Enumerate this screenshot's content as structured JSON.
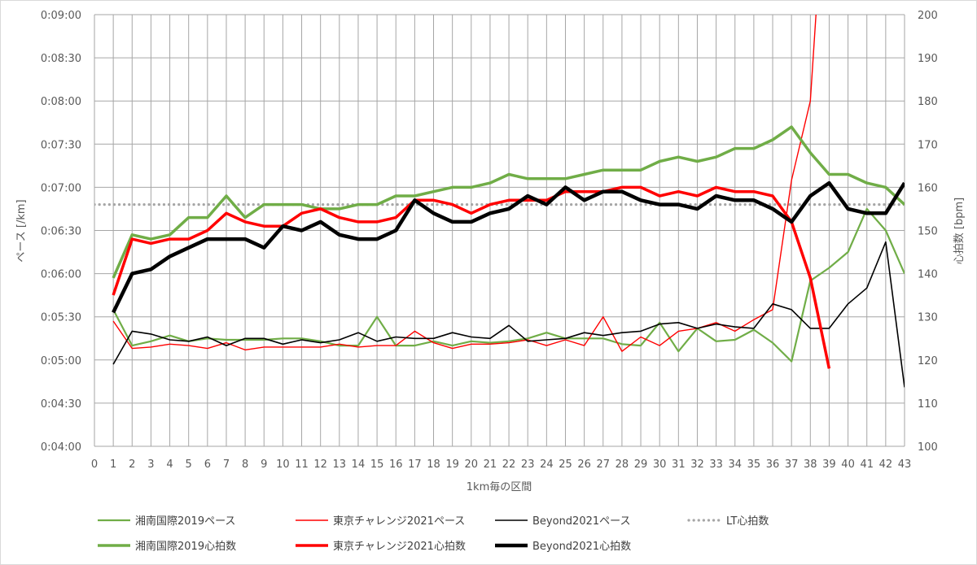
{
  "chart_data": {
    "type": "line",
    "title": "",
    "xlabel": "1km毎の区間",
    "ylabel_left": "ペース [/km]",
    "ylabel_right": "心拍数 [bpm]",
    "x": [
      0,
      1,
      2,
      3,
      4,
      5,
      6,
      7,
      8,
      9,
      10,
      11,
      12,
      13,
      14,
      15,
      16,
      17,
      18,
      19,
      20,
      21,
      22,
      23,
      24,
      25,
      26,
      27,
      28,
      29,
      30,
      31,
      32,
      33,
      34,
      35,
      36,
      37,
      38,
      39,
      40,
      41,
      42,
      43
    ],
    "xlim": [
      0,
      43
    ],
    "ylim_left": [
      240,
      540
    ],
    "yticks_left": [
      "0:04:00",
      "0:04:30",
      "0:05:00",
      "0:05:30",
      "0:06:00",
      "0:06:30",
      "0:07:00",
      "0:07:30",
      "0:08:00",
      "0:08:30",
      "0:09:00"
    ],
    "ylim_right": [
      100,
      200
    ],
    "yticks_right": [
      "100",
      "110",
      "120",
      "130",
      "140",
      "150",
      "160",
      "170",
      "180",
      "190",
      "200"
    ],
    "grid": true,
    "legend_position": "bottom",
    "series": [
      {
        "name": "湘南国際2019ペース",
        "axis": "left",
        "color": "#70ad47",
        "width": 2.2,
        "style": "solid",
        "x": [
          1,
          2,
          3,
          4,
          5,
          6,
          7,
          8,
          9,
          10,
          11,
          12,
          13,
          14,
          15,
          16,
          17,
          18,
          19,
          20,
          21,
          22,
          23,
          24,
          25,
          26,
          27,
          28,
          29,
          30,
          31,
          32,
          33,
          34,
          35,
          36,
          37,
          38,
          39,
          40,
          41,
          42,
          43
        ],
        "values": [
          335,
          310,
          313,
          317,
          313,
          315,
          314,
          314,
          314,
          315,
          315,
          313,
          310,
          310,
          330,
          310,
          310,
          313,
          310,
          313,
          312,
          313,
          315,
          319,
          315,
          315,
          315,
          311,
          310,
          326,
          306,
          322,
          313,
          314,
          321,
          312,
          299,
          355,
          364,
          375,
          405,
          390,
          360
        ]
      },
      {
        "name": "東京チャレンジ2021ペース",
        "axis": "left",
        "color": "#ff0000",
        "width": 1.4,
        "style": "solid",
        "x": [
          1,
          2,
          3,
          4,
          5,
          6,
          7,
          8,
          9,
          10,
          11,
          12,
          13,
          14,
          15,
          16,
          17,
          18,
          19,
          20,
          21,
          22,
          23,
          24,
          25,
          26,
          27,
          28,
          29,
          30,
          31,
          32,
          33,
          34,
          35,
          36,
          37,
          38,
          39
        ],
        "values": [
          327,
          308,
          309,
          311,
          310,
          308,
          312,
          307,
          309,
          309,
          309,
          309,
          311,
          309,
          310,
          310,
          320,
          312,
          308,
          311,
          311,
          312,
          314,
          310,
          314,
          310,
          330,
          306,
          316,
          310,
          320,
          322,
          326,
          320,
          328,
          335,
          425,
          480,
          680
        ]
      },
      {
        "name": "Beyond2021ペース",
        "axis": "left",
        "color": "#000000",
        "width": 1.6,
        "style": "solid",
        "x": [
          1,
          2,
          3,
          4,
          5,
          6,
          7,
          8,
          9,
          10,
          11,
          12,
          13,
          14,
          15,
          16,
          17,
          18,
          19,
          20,
          21,
          22,
          23,
          24,
          25,
          26,
          27,
          28,
          29,
          30,
          31,
          32,
          33,
          34,
          35,
          36,
          37,
          38,
          39,
          40,
          41,
          42,
          43
        ],
        "values": [
          297,
          320,
          318,
          314,
          313,
          316,
          310,
          315,
          315,
          311,
          314,
          312,
          314,
          319,
          313,
          316,
          315,
          315,
          319,
          316,
          315,
          324,
          313,
          314,
          315,
          319,
          317,
          319,
          320,
          325,
          326,
          322,
          325,
          323,
          322,
          339,
          335,
          322,
          322,
          339,
          350,
          382,
          281
        ]
      },
      {
        "name": "LT心拍数",
        "axis": "right",
        "color": "#a6a6a6",
        "width": 3.2,
        "style": "dotted",
        "x": [
          0,
          43
        ],
        "values": [
          156,
          156
        ]
      },
      {
        "name": "湘南国際2019心拍数",
        "axis": "right",
        "color": "#70ad47",
        "width": 3.5,
        "style": "solid",
        "x": [
          1,
          2,
          3,
          4,
          5,
          6,
          7,
          8,
          9,
          10,
          11,
          12,
          13,
          14,
          15,
          16,
          17,
          18,
          19,
          20,
          21,
          22,
          23,
          24,
          25,
          26,
          27,
          28,
          29,
          30,
          31,
          32,
          33,
          34,
          35,
          36,
          37,
          38,
          39,
          40,
          41,
          42,
          43
        ],
        "values": [
          139,
          149,
          148,
          149,
          153,
          153,
          158,
          153,
          156,
          156,
          156,
          155,
          155,
          156,
          156,
          158,
          158,
          159,
          160,
          160,
          161,
          163,
          162,
          162,
          162,
          163,
          164,
          164,
          164,
          166,
          167,
          166,
          167,
          169,
          169,
          171,
          174,
          168,
          163,
          163,
          161,
          160,
          156
        ]
      },
      {
        "name": "東京チャレンジ2021心拍数",
        "axis": "right",
        "color": "#ff0000",
        "width": 3.5,
        "style": "solid",
        "x": [
          1,
          2,
          3,
          4,
          5,
          6,
          7,
          8,
          9,
          10,
          11,
          12,
          13,
          14,
          15,
          16,
          17,
          18,
          19,
          20,
          21,
          22,
          23,
          24,
          25,
          26,
          27,
          28,
          29,
          30,
          31,
          32,
          33,
          34,
          35,
          36,
          37,
          38,
          39
        ],
        "values": [
          135,
          148,
          147,
          148,
          148,
          150,
          154,
          152,
          151,
          151,
          154,
          155,
          153,
          152,
          152,
          153,
          157,
          157,
          156,
          154,
          156,
          157,
          157,
          157,
          159,
          159,
          159,
          160,
          160,
          158,
          159,
          158,
          160,
          159,
          159,
          158,
          152,
          139,
          118
        ]
      },
      {
        "name": "Beyond2021心拍数",
        "axis": "right",
        "color": "#000000",
        "width": 4.5,
        "style": "solid",
        "x": [
          1,
          2,
          3,
          4,
          5,
          6,
          7,
          8,
          9,
          10,
          11,
          12,
          13,
          14,
          15,
          16,
          17,
          18,
          19,
          20,
          21,
          22,
          23,
          24,
          25,
          26,
          27,
          28,
          29,
          30,
          31,
          32,
          33,
          34,
          35,
          36,
          37,
          38,
          39,
          40,
          41,
          42,
          43
        ],
        "values": [
          131,
          140,
          141,
          144,
          146,
          148,
          148,
          148,
          146,
          151,
          150,
          152,
          149,
          148,
          148,
          150,
          157,
          154,
          152,
          152,
          154,
          155,
          158,
          156,
          160,
          157,
          159,
          159,
          157,
          156,
          156,
          155,
          158,
          157,
          157,
          155,
          152,
          158,
          161,
          155,
          154,
          154,
          161
        ]
      }
    ]
  }
}
